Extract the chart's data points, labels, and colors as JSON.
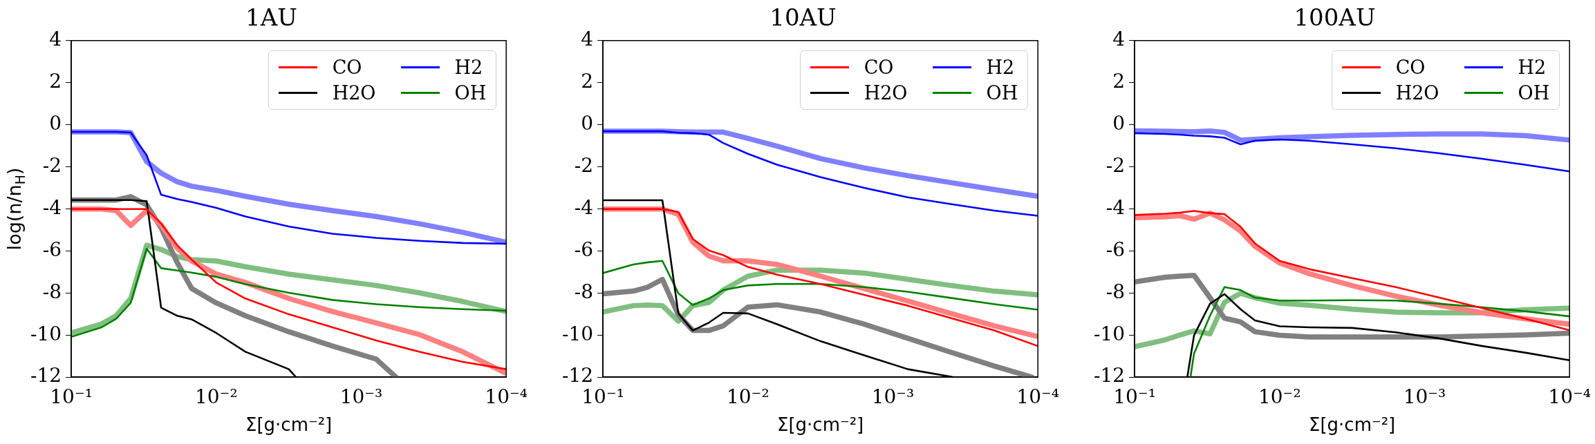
{
  "chart_data": [
    {
      "type": "line",
      "title": "1AU",
      "xlabel": "Σ[g·cm⁻²]",
      "ylabel": "log(n/n$_{H}$)",
      "log": "x",
      "legend": "top right",
      "xlim": [
        0.1,
        0.0001
      ],
      "xticks": [
        {
          "value": 0.1,
          "label": "10⁻¹"
        },
        {
          "value": 0.01,
          "label": "10⁻²"
        },
        {
          "value": 0.001,
          "label": "10⁻³"
        },
        {
          "value": 0.0001,
          "label": "10⁻⁴"
        }
      ],
      "ylim": [
        -12,
        4
      ],
      "yticks": [
        -12,
        -10,
        -8,
        -6,
        -4,
        -2,
        0,
        2,
        4
      ],
      "x": [
        0.1,
        0.0617,
        0.049,
        0.0389,
        0.0302,
        0.024,
        0.0186,
        0.0148,
        0.01,
        0.0063,
        0.00316,
        0.00158,
        0.00079,
        0.0004,
        0.0002,
        0.0001
      ],
      "series": [
        {
          "color": "#ff8080",
          "values": [
            -4.01,
            -4.01,
            -4.08,
            -4.79,
            -4.08,
            -4.77,
            -5.86,
            -6.48,
            -7.1,
            -7.5,
            -8.26,
            -8.88,
            -9.42,
            -9.97,
            -10.79,
            -11.82
          ]
        },
        {
          "color": "#808080",
          "x": [
            0.1,
            0.0617,
            0.049,
            0.0389,
            0.0302,
            0.024,
            0.0186,
            0.0148,
            0.01,
            0.0063,
            0.00316,
            0.00158,
            0.00079,
            0.000575
          ],
          "values": [
            -3.58,
            -3.58,
            -3.58,
            -3.42,
            -3.81,
            -4.9,
            -6.55,
            -7.78,
            -8.47,
            -9.08,
            -9.84,
            -10.52,
            -11.14,
            -12
          ]
        },
        {
          "color": "#8080ff",
          "values": [
            -0.34,
            -0.34,
            -0.34,
            -0.37,
            -1.75,
            -2.3,
            -2.71,
            -2.92,
            -3.12,
            -3.4,
            -3.78,
            -4.08,
            -4.36,
            -4.7,
            -5.11,
            -5.59
          ]
        },
        {
          "color": "#80bf80",
          "values": [
            -9.9,
            -9.47,
            -9.08,
            -8.26,
            -5.73,
            -5.93,
            -6.27,
            -6.41,
            -6.48,
            -6.75,
            -7.1,
            -7.37,
            -7.64,
            -7.99,
            -8.4,
            -8.88
          ]
        },
        {
          "name": "CO",
          "color": "#ff0000",
          "values": [
            -4.01,
            -4.01,
            -4.01,
            -4.01,
            -4.01,
            -4.7,
            -5.73,
            -6.41,
            -7.5,
            -8.26,
            -9.01,
            -9.63,
            -10.25,
            -10.79,
            -11.27,
            -11.62
          ]
        },
        {
          "name": "H2O",
          "color": "#000000",
          "x": [
            0.1,
            0.0617,
            0.049,
            0.0389,
            0.0302,
            0.024,
            0.0186,
            0.0148,
            0.01,
            0.0063,
            0.00316,
            0.00282
          ],
          "values": [
            -3.58,
            -3.58,
            -3.58,
            -3.58,
            -3.63,
            -8.7,
            -9.08,
            -9.25,
            -9.9,
            -10.79,
            -11.62,
            -12
          ]
        },
        {
          "name": "H2",
          "color": "#0000ff",
          "values": [
            -0.34,
            -0.34,
            -0.34,
            -0.37,
            -1.45,
            -3.33,
            -3.53,
            -3.67,
            -3.95,
            -4.36,
            -4.84,
            -5.18,
            -5.38,
            -5.52,
            -5.62,
            -5.66
          ]
        },
        {
          "name": "OH",
          "color": "#008000",
          "values": [
            -10.08,
            -9.63,
            -9.22,
            -8.47,
            -5.89,
            -6.82,
            -6.93,
            -7.03,
            -7.23,
            -7.58,
            -7.99,
            -8.33,
            -8.53,
            -8.67,
            -8.77,
            -8.84
          ]
        }
      ]
    },
    {
      "type": "line",
      "title": "10AU",
      "xlabel": "Σ[g·cm⁻²]",
      "log": "x",
      "legend": "top right",
      "xlim": [
        0.1,
        0.0001
      ],
      "xticks": [
        {
          "value": 0.1,
          "label": "10⁻¹"
        },
        {
          "value": 0.01,
          "label": "10⁻²"
        },
        {
          "value": 0.001,
          "label": "10⁻³"
        },
        {
          "value": 0.0001,
          "label": "10⁻⁴"
        }
      ],
      "ylim": [
        -12,
        4
      ],
      "yticks": [
        -12,
        -10,
        -8,
        -6,
        -4,
        -2,
        0,
        2,
        4
      ],
      "x": [
        0.1,
        0.0617,
        0.049,
        0.0389,
        0.0302,
        0.024,
        0.0186,
        0.0148,
        0.01,
        0.0063,
        0.00316,
        0.00158,
        0.00079,
        0.0004,
        0.0002,
        0.0001
      ],
      "series": [
        {
          "color": "#ff8080",
          "values": [
            -4.01,
            -4.01,
            -4.01,
            -4.01,
            -4.26,
            -5.58,
            -6.24,
            -6.47,
            -6.47,
            -6.64,
            -7.2,
            -7.79,
            -8.38,
            -8.97,
            -9.56,
            -10.07
          ]
        },
        {
          "color": "#808080",
          "x": [
            0.1,
            0.0617,
            0.049,
            0.0389,
            0.0302,
            0.024,
            0.0186,
            0.0148,
            0.01,
            0.0063,
            0.00316,
            0.00158,
            0.00079,
            0.0004,
            0.0002,
            0.00011
          ],
          "values": [
            -8.04,
            -7.91,
            -7.72,
            -7.35,
            -9.04,
            -9.78,
            -9.78,
            -9.56,
            -8.67,
            -8.56,
            -8.9,
            -9.48,
            -10.15,
            -10.81,
            -11.47,
            -12
          ]
        },
        {
          "color": "#8080ff",
          "values": [
            -0.31,
            -0.31,
            -0.31,
            -0.31,
            -0.33,
            -0.35,
            -0.35,
            -0.35,
            -0.65,
            -1.02,
            -1.61,
            -2.05,
            -2.42,
            -2.75,
            -3.08,
            -3.4
          ]
        },
        {
          "color": "#80bf80",
          "values": [
            -8.9,
            -8.6,
            -8.57,
            -8.6,
            -9.34,
            -8.6,
            -8.45,
            -7.86,
            -7.2,
            -6.91,
            -6.91,
            -7.05,
            -7.35,
            -7.64,
            -7.91,
            -8.09
          ]
        },
        {
          "name": "CO",
          "color": "#ff0000",
          "values": [
            -4.01,
            -4.01,
            -4.01,
            -4.01,
            -4.15,
            -5.43,
            -5.98,
            -6.2,
            -6.76,
            -7.13,
            -7.57,
            -8.09,
            -8.6,
            -9.19,
            -9.78,
            -10.52
          ]
        },
        {
          "name": "H2O",
          "color": "#000000",
          "x": [
            0.1,
            0.0617,
            0.049,
            0.0389,
            0.0302,
            0.024,
            0.0186,
            0.0148,
            0.01,
            0.0063,
            0.00316,
            0.00158,
            0.00079,
            0.00038
          ],
          "values": [
            -3.59,
            -3.59,
            -3.59,
            -3.59,
            -8.97,
            -9.78,
            -9.41,
            -8.94,
            -8.97,
            -9.48,
            -10.29,
            -10.96,
            -11.62,
            -12
          ]
        },
        {
          "name": "H2",
          "color": "#0000ff",
          "values": [
            -0.31,
            -0.31,
            -0.31,
            -0.31,
            -0.38,
            -0.4,
            -0.47,
            -0.87,
            -1.38,
            -1.9,
            -2.49,
            -3.0,
            -3.45,
            -3.77,
            -4.08,
            -4.33
          ]
        },
        {
          "name": "OH",
          "color": "#008000",
          "values": [
            -7.05,
            -6.64,
            -6.54,
            -6.47,
            -8.01,
            -8.57,
            -8.26,
            -7.86,
            -7.64,
            -7.57,
            -7.57,
            -7.72,
            -7.94,
            -8.23,
            -8.53,
            -8.79
          ]
        }
      ]
    },
    {
      "type": "line",
      "title": "100AU",
      "xlabel": "Σ[g·cm⁻²]",
      "log": "x",
      "legend": "top right",
      "xlim": [
        0.1,
        0.0001
      ],
      "xticks": [
        {
          "value": 0.1,
          "label": "10⁻¹"
        },
        {
          "value": 0.01,
          "label": "10⁻²"
        },
        {
          "value": 0.001,
          "label": "10⁻³"
        },
        {
          "value": 0.0001,
          "label": "10⁻⁴"
        }
      ],
      "ylim": [
        -12,
        4
      ],
      "yticks": [
        -12,
        -10,
        -8,
        -6,
        -4,
        -2,
        0,
        2,
        4
      ],
      "x": [
        0.1,
        0.0617,
        0.049,
        0.0389,
        0.0302,
        0.024,
        0.0186,
        0.0148,
        0.01,
        0.0063,
        0.00316,
        0.00158,
        0.00079,
        0.0004,
        0.0002,
        0.0001
      ],
      "series": [
        {
          "color": "#ff8080",
          "values": [
            -4.42,
            -4.38,
            -4.32,
            -4.49,
            -4.2,
            -4.52,
            -5.06,
            -5.78,
            -6.57,
            -7.07,
            -7.65,
            -8.15,
            -8.58,
            -8.94,
            -9.23,
            -9.48
          ]
        },
        {
          "color": "#808080",
          "values": [
            -7.47,
            -7.25,
            -7.2,
            -7.16,
            -8.22,
            -9.2,
            -9.37,
            -9.84,
            -10.01,
            -10.09,
            -10.09,
            -10.09,
            -10.09,
            -10.04,
            -9.99,
            -9.91
          ]
        },
        {
          "color": "#8080ff",
          "values": [
            -0.29,
            -0.31,
            -0.32,
            -0.33,
            -0.3,
            -0.36,
            -0.73,
            -0.69,
            -0.62,
            -0.57,
            -0.5,
            -0.46,
            -0.44,
            -0.44,
            -0.52,
            -0.73
          ]
        },
        {
          "color": "#80bf80",
          "values": [
            -10.55,
            -10.23,
            -10.0,
            -9.8,
            -9.94,
            -8.44,
            -8.01,
            -8.22,
            -8.48,
            -8.58,
            -8.77,
            -8.91,
            -8.94,
            -8.94,
            -8.79,
            -8.72
          ]
        },
        {
          "name": "CO",
          "color": "#ff0000",
          "values": [
            -4.29,
            -4.23,
            -4.18,
            -4.1,
            -4.2,
            -4.25,
            -4.85,
            -5.64,
            -6.47,
            -6.86,
            -7.29,
            -7.72,
            -8.22,
            -8.72,
            -9.23,
            -9.77
          ]
        },
        {
          "name": "H2O",
          "color": "#000000",
          "x": [
            0.0433,
            0.0389,
            0.0302,
            0.024,
            0.0186,
            0.0148,
            0.01,
            0.0063,
            0.00316,
            0.00158,
            0.00079,
            0.0004,
            0.0002,
            0.0001
          ],
          "values": [
            -12,
            -10.01,
            -8.51,
            -8.05,
            -8.77,
            -9.3,
            -9.58,
            -9.63,
            -9.66,
            -9.87,
            -10.16,
            -10.52,
            -10.84,
            -11.2
          ]
        },
        {
          "name": "H2",
          "color": "#0000ff",
          "values": [
            -0.4,
            -0.44,
            -0.47,
            -0.52,
            -0.55,
            -0.62,
            -0.93,
            -0.76,
            -0.7,
            -0.76,
            -0.93,
            -1.12,
            -1.36,
            -1.62,
            -1.91,
            -2.22
          ]
        },
        {
          "name": "OH",
          "color": "#008000",
          "x": [
            0.0412,
            0.0389,
            0.0302,
            0.024,
            0.0186,
            0.0148,
            0.01,
            0.0063,
            0.00316,
            0.00158,
            0.00079,
            0.0004,
            0.0002,
            0.0001
          ],
          "values": [
            -12,
            -10.88,
            -9.08,
            -7.72,
            -7.86,
            -8.22,
            -8.36,
            -8.36,
            -8.34,
            -8.36,
            -8.51,
            -8.68,
            -8.87,
            -9.11
          ]
        }
      ]
    }
  ]
}
